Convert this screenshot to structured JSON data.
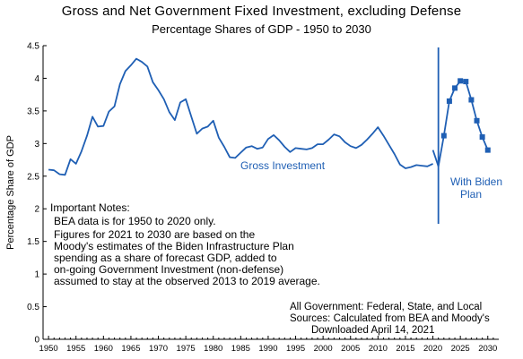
{
  "chart_data": {
    "type": "line",
    "title": "Gross and Net Government Fixed Investment, excluding Defense",
    "subtitle": "Percentage Shares of GDP - 1950 to 2030",
    "xlabel": "",
    "ylabel": "Percentage Share of GDP",
    "xlim": [
      1949,
      2032
    ],
    "ylim": [
      0,
      4.5
    ],
    "xticks": [
      "1950",
      "1955",
      "1960",
      "1965",
      "1970",
      "1975",
      "1980",
      "1985",
      "1990",
      "1995",
      "2000",
      "2005",
      "2010",
      "2015",
      "2020",
      "2025",
      "2030"
    ],
    "yticks": [
      "0",
      "0.5",
      "1",
      "1.5",
      "2",
      "2.5",
      "3",
      "3.5",
      "4",
      "4.5"
    ],
    "grid": false,
    "color": "#1f5fb4",
    "series": [
      {
        "name": "Gross Investment",
        "x": [
          1950,
          1951,
          1952,
          1953,
          1954,
          1955,
          1956,
          1957,
          1958,
          1959,
          1960,
          1961,
          1962,
          1963,
          1964,
          1965,
          1966,
          1967,
          1968,
          1969,
          1970,
          1971,
          1972,
          1973,
          1974,
          1975,
          1976,
          1977,
          1978,
          1979,
          1980,
          1981,
          1982,
          1983,
          1984,
          1985,
          1986,
          1987,
          1988,
          1989,
          1990,
          1991,
          1992,
          1993,
          1994,
          1995,
          1996,
          1997,
          1998,
          1999,
          2000,
          2001,
          2002,
          2003,
          2004,
          2005,
          2006,
          2007,
          2008,
          2009,
          2010,
          2011,
          2012,
          2013,
          2014,
          2015,
          2016,
          2017,
          2018,
          2019,
          2020
        ],
        "values": [
          2.6,
          2.59,
          2.53,
          2.52,
          2.76,
          2.69,
          2.88,
          3.12,
          3.41,
          3.26,
          3.27,
          3.49,
          3.57,
          3.91,
          4.11,
          4.2,
          4.3,
          4.25,
          4.18,
          3.94,
          3.82,
          3.68,
          3.48,
          3.36,
          3.63,
          3.68,
          3.41,
          3.15,
          3.23,
          3.26,
          3.35,
          3.09,
          2.95,
          2.79,
          2.78,
          2.86,
          2.94,
          2.96,
          2.92,
          2.94,
          3.07,
          3.13,
          3.05,
          2.95,
          2.87,
          2.93,
          2.92,
          2.91,
          2.93,
          2.99,
          2.99,
          3.06,
          3.14,
          3.11,
          3.02,
          2.96,
          2.93,
          2.98,
          3.06,
          3.15,
          3.25,
          3.12,
          2.98,
          2.84,
          2.68,
          2.62,
          2.64,
          2.67,
          2.66,
          2.65,
          2.69
        ]
      },
      {
        "name": "With Biden Plan",
        "x": [
          2020,
          2021,
          2022,
          2023,
          2024,
          2025,
          2026,
          2027,
          2028,
          2029,
          2030
        ],
        "values": [
          2.9,
          2.65,
          3.12,
          3.65,
          3.85,
          3.96,
          3.95,
          3.67,
          3.35,
          3.1,
          2.9
        ]
      }
    ],
    "vline_x": 2021,
    "annotations": {
      "gross_label": "Gross Investment",
      "biden_label_1": "With Biden",
      "biden_label_2": "Plan",
      "notes": [
        "Important Notes:",
        "BEA data is for 1950 to 2020 only.",
        "Figures for 2021 to 2030 are based on the",
        "Moody's estimates of the Biden Infrastructure Plan",
        "spending as a share of forecast GDP, added to",
        "on-going Government Investment (non-defense)",
        "assumed to stay at the observed 2013 to 2019 average."
      ],
      "sources": [
        "All Government: Federal, State, and Local",
        "Sources:  Calculated from BEA and Moody's",
        "Downloaded April 14, 2021"
      ]
    }
  }
}
